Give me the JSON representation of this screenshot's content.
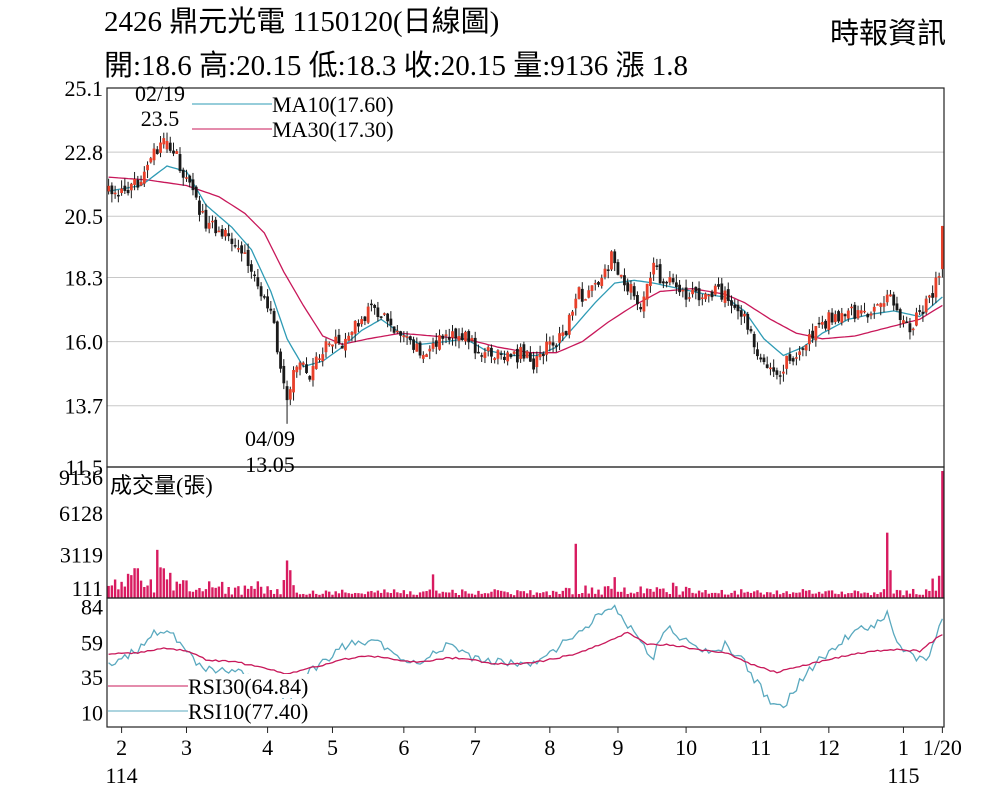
{
  "header": {
    "title": "2426  鼎元光電 1150120(日線圖)",
    "summary": "開:18.6 高:20.15 低:18.3 收:20.15 量:9136 漲 1.8",
    "source": "時報資訊"
  },
  "colors": {
    "up": "#e8402a",
    "down": "#1a1a1a",
    "ma10": "#2e9bb5",
    "ma30": "#c8185a",
    "volume": "#d81b60",
    "rsi30": "#c8185a",
    "rsi10": "#5aa9bf",
    "grid": "#c8c8c8"
  },
  "chart_data": [
    {
      "type": "candlestick",
      "ylim": [
        11.5,
        25.1
      ],
      "yticks": [
        "25.1",
        "22.8",
        "20.5",
        "18.3",
        "16.0",
        "13.7",
        "11.5"
      ],
      "legend": [
        {
          "name": "MA10",
          "value": "(17.60)",
          "color": "ma10"
        },
        {
          "name": "MA30",
          "value": "(17.30)",
          "color": "ma30"
        }
      ],
      "annotations": [
        {
          "date": "02/19",
          "value": "23.5"
        },
        {
          "date": "04/09",
          "value": "13.05"
        }
      ],
      "anchor_closes": [
        [
          0,
          21.5
        ],
        [
          6,
          21.2
        ],
        [
          12,
          22.4
        ],
        [
          18,
          23.2
        ],
        [
          21,
          22.6
        ],
        [
          25,
          21.5
        ],
        [
          30,
          20.3
        ],
        [
          36,
          19.9
        ],
        [
          40,
          19.6
        ],
        [
          44,
          18.6
        ],
        [
          48,
          17.5
        ],
        [
          50,
          17.3
        ],
        [
          53,
          14.8
        ],
        [
          55,
          14.0
        ],
        [
          58,
          15.2
        ],
        [
          62,
          14.9
        ],
        [
          66,
          15.7
        ],
        [
          70,
          16.2
        ],
        [
          73,
          15.9
        ],
        [
          77,
          16.8
        ],
        [
          81,
          17.1
        ],
        [
          85,
          17.0
        ],
        [
          88,
          16.2
        ],
        [
          92,
          16.0
        ],
        [
          96,
          15.6
        ],
        [
          100,
          15.8
        ],
        [
          104,
          16.2
        ],
        [
          108,
          16.4
        ],
        [
          112,
          15.9
        ],
        [
          116,
          15.5
        ],
        [
          120,
          15.6
        ],
        [
          124,
          15.4
        ],
        [
          128,
          15.6
        ],
        [
          131,
          15.2
        ],
        [
          134,
          15.7
        ],
        [
          138,
          16.0
        ],
        [
          141,
          16.4
        ],
        [
          144,
          17.8
        ],
        [
          148,
          17.6
        ],
        [
          152,
          18.3
        ],
        [
          155,
          19.0
        ],
        [
          158,
          18.2
        ],
        [
          161,
          17.8
        ],
        [
          164,
          17.4
        ],
        [
          168,
          18.6
        ],
        [
          172,
          18.1
        ],
        [
          176,
          17.9
        ],
        [
          180,
          17.6
        ],
        [
          184,
          17.6
        ],
        [
          188,
          17.8
        ],
        [
          192,
          17.4
        ],
        [
          196,
          16.8
        ],
        [
          200,
          15.7
        ],
        [
          204,
          15.1
        ],
        [
          207,
          15.0
        ],
        [
          210,
          15.4
        ],
        [
          214,
          15.8
        ],
        [
          218,
          16.3
        ],
        [
          222,
          16.8
        ],
        [
          226,
          17.0
        ],
        [
          230,
          17.0
        ],
        [
          234,
          17.1
        ],
        [
          238,
          17.2
        ],
        [
          241,
          17.6
        ],
        [
          244,
          17.0
        ],
        [
          247,
          16.6
        ],
        [
          250,
          17.0
        ],
        [
          253,
          17.5
        ],
        [
          256,
          18.35
        ],
        [
          257,
          20.15
        ]
      ],
      "ma10_anchors": [
        [
          0,
          21.4
        ],
        [
          10,
          21.6
        ],
        [
          18,
          22.3
        ],
        [
          24,
          22.1
        ],
        [
          30,
          20.9
        ],
        [
          38,
          20.1
        ],
        [
          44,
          19.3
        ],
        [
          50,
          17.8
        ],
        [
          55,
          16.1
        ],
        [
          60,
          15.1
        ],
        [
          66,
          15.3
        ],
        [
          72,
          15.8
        ],
        [
          78,
          16.4
        ],
        [
          84,
          16.8
        ],
        [
          90,
          16.3
        ],
        [
          96,
          15.9
        ],
        [
          104,
          16.0
        ],
        [
          110,
          16.1
        ],
        [
          116,
          15.7
        ],
        [
          124,
          15.5
        ],
        [
          132,
          15.5
        ],
        [
          138,
          15.8
        ],
        [
          144,
          16.6
        ],
        [
          150,
          17.4
        ],
        [
          156,
          18.1
        ],
        [
          162,
          18.2
        ],
        [
          168,
          18.1
        ],
        [
          176,
          17.9
        ],
        [
          184,
          17.7
        ],
        [
          190,
          17.6
        ],
        [
          196,
          17.1
        ],
        [
          202,
          16.1
        ],
        [
          208,
          15.5
        ],
        [
          214,
          15.8
        ],
        [
          220,
          16.3
        ],
        [
          228,
          16.8
        ],
        [
          236,
          17.0
        ],
        [
          242,
          17.1
        ],
        [
          250,
          16.9
        ],
        [
          257,
          17.6
        ]
      ],
      "ma30_anchors": [
        [
          0,
          21.9
        ],
        [
          12,
          21.8
        ],
        [
          24,
          21.6
        ],
        [
          34,
          21.2
        ],
        [
          42,
          20.6
        ],
        [
          48,
          19.9
        ],
        [
          54,
          18.5
        ],
        [
          60,
          17.3
        ],
        [
          66,
          16.2
        ],
        [
          72,
          15.9
        ],
        [
          80,
          16.1
        ],
        [
          90,
          16.3
        ],
        [
          100,
          16.2
        ],
        [
          110,
          16.1
        ],
        [
          120,
          15.8
        ],
        [
          130,
          15.6
        ],
        [
          138,
          15.6
        ],
        [
          146,
          16.0
        ],
        [
          154,
          16.7
        ],
        [
          162,
          17.3
        ],
        [
          170,
          17.8
        ],
        [
          180,
          17.9
        ],
        [
          190,
          17.7
        ],
        [
          196,
          17.4
        ],
        [
          204,
          16.8
        ],
        [
          212,
          16.3
        ],
        [
          220,
          16.1
        ],
        [
          230,
          16.2
        ],
        [
          240,
          16.5
        ],
        [
          250,
          16.8
        ],
        [
          257,
          17.3
        ]
      ]
    },
    {
      "type": "bar",
      "name": "成交量(張)",
      "ylim": [
        111,
        9136
      ],
      "yticks": [
        "9136",
        "6128",
        "3119",
        "111"
      ],
      "spikes": [
        [
          15,
          2600
        ],
        [
          16,
          2200
        ],
        [
          17,
          2000
        ],
        [
          19,
          1500
        ],
        [
          46,
          1200
        ],
        [
          55,
          2700
        ],
        [
          56,
          2000
        ],
        [
          100,
          1700
        ],
        [
          144,
          3900
        ],
        [
          156,
          1500
        ],
        [
          174,
          1100
        ],
        [
          240,
          4700
        ],
        [
          241,
          2000
        ],
        [
          254,
          1400
        ],
        [
          256,
          1600
        ],
        [
          257,
          9136
        ]
      ]
    },
    {
      "type": "line",
      "ylim": [
        10,
        84
      ],
      "yticks": [
        "84",
        "59",
        "35",
        "10"
      ],
      "series": [
        {
          "name": "RSI30",
          "value": "(64.84)",
          "color": "rsi30",
          "anchors": [
            [
              0,
              51
            ],
            [
              10,
              52
            ],
            [
              18,
              55
            ],
            [
              24,
              53
            ],
            [
              30,
              47
            ],
            [
              40,
              45
            ],
            [
              46,
              42
            ],
            [
              50,
              40
            ],
            [
              55,
              37
            ],
            [
              60,
              40
            ],
            [
              66,
              43
            ],
            [
              72,
              47
            ],
            [
              80,
              50
            ],
            [
              88,
              47
            ],
            [
              96,
              45
            ],
            [
              104,
              48
            ],
            [
              110,
              48
            ],
            [
              118,
              44
            ],
            [
              126,
              44
            ],
            [
              134,
              46
            ],
            [
              142,
              50
            ],
            [
              150,
              56
            ],
            [
              156,
              62
            ],
            [
              160,
              66
            ],
            [
              166,
              58
            ],
            [
              174,
              57
            ],
            [
              182,
              54
            ],
            [
              190,
              52
            ],
            [
              198,
              44
            ],
            [
              206,
              38
            ],
            [
              212,
              42
            ],
            [
              220,
              46
            ],
            [
              228,
              50
            ],
            [
              236,
              53
            ],
            [
              244,
              54
            ],
            [
              250,
              53
            ],
            [
              257,
              64.8
            ]
          ]
        },
        {
          "name": "RSI10",
          "value": "(77.40)",
          "color": "rsi10",
          "anchors": [
            [
              0,
              45
            ],
            [
              8,
              52
            ],
            [
              14,
              65
            ],
            [
              18,
              69
            ],
            [
              22,
              58
            ],
            [
              28,
              42
            ],
            [
              34,
              40
            ],
            [
              40,
              38
            ],
            [
              46,
              30
            ],
            [
              52,
              22
            ],
            [
              56,
              18
            ],
            [
              60,
              36
            ],
            [
              66,
              45
            ],
            [
              72,
              56
            ],
            [
              78,
              60
            ],
            [
              84,
              58
            ],
            [
              90,
              48
            ],
            [
              96,
              46
            ],
            [
              102,
              55
            ],
            [
              106,
              58
            ],
            [
              112,
              48
            ],
            [
              118,
              46
            ],
            [
              124,
              45
            ],
            [
              130,
              45
            ],
            [
              136,
              50
            ],
            [
              142,
              62
            ],
            [
              148,
              72
            ],
            [
              152,
              80
            ],
            [
              156,
              83
            ],
            [
              160,
              72
            ],
            [
              164,
              58
            ],
            [
              168,
              50
            ],
            [
              172,
              70
            ],
            [
              176,
              63
            ],
            [
              180,
              56
            ],
            [
              186,
              52
            ],
            [
              190,
              57
            ],
            [
              196,
              45
            ],
            [
              200,
              30
            ],
            [
              204,
              18
            ],
            [
              208,
              14
            ],
            [
              212,
              28
            ],
            [
              218,
              45
            ],
            [
              224,
              55
            ],
            [
              230,
              68
            ],
            [
              236,
              70
            ],
            [
              240,
              80
            ],
            [
              244,
              55
            ],
            [
              248,
              48
            ],
            [
              252,
              45
            ],
            [
              257,
              77.4
            ]
          ]
        }
      ]
    }
  ],
  "xaxis": {
    "months": [
      {
        "label": "2",
        "idx": 4
      },
      {
        "label": "3",
        "idx": 24
      },
      {
        "label": "4",
        "idx": 49
      },
      {
        "label": "5",
        "idx": 69
      },
      {
        "label": "6",
        "idx": 91
      },
      {
        "label": "7",
        "idx": 113
      },
      {
        "label": "8",
        "idx": 136
      },
      {
        "label": "9",
        "idx": 157
      },
      {
        "label": "10",
        "idx": 178
      },
      {
        "label": "11",
        "idx": 201
      },
      {
        "label": "12",
        "idx": 222
      },
      {
        "label": "1",
        "idx": 245
      },
      {
        "label": "1/20",
        "idx": 257
      }
    ],
    "years": [
      {
        "label": "114",
        "idx": 4
      },
      {
        "label": "115",
        "idx": 245
      }
    ]
  }
}
